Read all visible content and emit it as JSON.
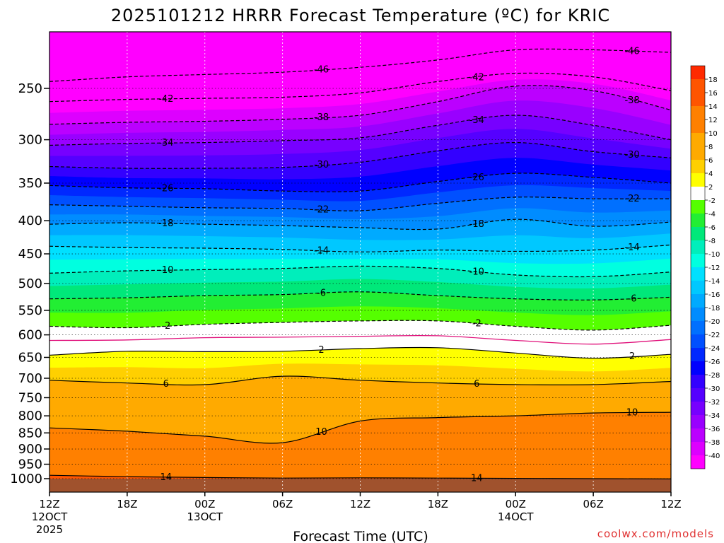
{
  "chart_data": {
    "type": "heatmap",
    "title": "2025101212 HRRR Forecast Temperature (ºC) for KRIC",
    "xlabel": "Forecast Time (UTC)",
    "credit": "coolwx.com/models",
    "y_axis": {
      "scale": "log-pressure",
      "ticks": [
        250,
        300,
        350,
        400,
        450,
        500,
        550,
        600,
        650,
        700,
        750,
        800,
        850,
        900,
        950,
        1000
      ]
    },
    "x_axis": {
      "ticks": [
        {
          "top": "12Z",
          "mid": "12OCT",
          "bottom": "2025"
        },
        {
          "top": "18Z",
          "mid": "",
          "bottom": ""
        },
        {
          "top": "00Z",
          "mid": "13OCT",
          "bottom": ""
        },
        {
          "top": "06Z",
          "mid": "",
          "bottom": ""
        },
        {
          "top": "12Z",
          "mid": "",
          "bottom": ""
        },
        {
          "top": "18Z",
          "mid": "",
          "bottom": ""
        },
        {
          "top": "00Z",
          "mid": "14OCT",
          "bottom": ""
        },
        {
          "top": "06Z",
          "mid": "",
          "bottom": ""
        },
        {
          "top": "12Z",
          "mid": "",
          "bottom": ""
        }
      ]
    },
    "colorbar": {
      "labels": [
        "18",
        "16",
        "14",
        "12",
        "10",
        "8",
        "6",
        "4",
        "2",
        "-2",
        "-4",
        "-6",
        "-8",
        "-10",
        "-12",
        "-14",
        "-16",
        "-18",
        "-20",
        "-22",
        "-24",
        "-26",
        "-28",
        "-30",
        "-32",
        "-34",
        "-36",
        "-38",
        "-40"
      ]
    },
    "isotherms": [
      {
        "value": 14,
        "label": "14",
        "p": [
          988,
          993,
          996,
          998,
          997,
          998,
          999,
          1000,
          1001
        ]
      },
      {
        "value": 10,
        "label": "10",
        "p": [
          835,
          845,
          860,
          880,
          815,
          805,
          800,
          792,
          790
        ]
      },
      {
        "value": 6,
        "label": "6",
        "p": [
          705,
          712,
          716,
          695,
          705,
          712,
          716,
          716,
          708
        ]
      },
      {
        "value": 2,
        "label": "2",
        "p": [
          645,
          636,
          637,
          636,
          630,
          628,
          640,
          652,
          643
        ]
      },
      {
        "value": -2,
        "label": "-2",
        "p": [
          582,
          585,
          578,
          574,
          571,
          571,
          582,
          590,
          580
        ]
      },
      {
        "value": -6,
        "label": "-6",
        "p": [
          528,
          526,
          522,
          520,
          515,
          522,
          528,
          530,
          525
        ]
      },
      {
        "value": -10,
        "label": "-10",
        "p": [
          482,
          478,
          476,
          474,
          470,
          474,
          485,
          488,
          480
        ]
      },
      {
        "value": -14,
        "label": "-14",
        "p": [
          438,
          440,
          441,
          443,
          447,
          444,
          446,
          444,
          436
        ]
      },
      {
        "value": -18,
        "label": "-18",
        "p": [
          405,
          403,
          405,
          407,
          410,
          412,
          398,
          408,
          402
        ]
      },
      {
        "value": -22,
        "label": "-22",
        "p": [
          378,
          380,
          382,
          383,
          386,
          376,
          368,
          370,
          370
        ]
      },
      {
        "value": -26,
        "label": "-26",
        "p": [
          353,
          356,
          357,
          360,
          360,
          348,
          338,
          343,
          350
        ]
      },
      {
        "value": -30,
        "label": "-30",
        "p": [
          330,
          332,
          332,
          331,
          325,
          312,
          303,
          313,
          320
        ]
      },
      {
        "value": -34,
        "label": "-34",
        "p": [
          306,
          304,
          303,
          301,
          298,
          285,
          275,
          285,
          300
        ]
      },
      {
        "value": -38,
        "label": "-38",
        "p": [
          284,
          282,
          281,
          279,
          275,
          262,
          248,
          252,
          270
        ]
      },
      {
        "value": -42,
        "label": "-42",
        "p": [
          262,
          260,
          259,
          258,
          254,
          244,
          237,
          240,
          252
        ]
      },
      {
        "value": -46,
        "label": "-46",
        "p": [
          244,
          240,
          238,
          236,
          232,
          226,
          218,
          218,
          220
        ]
      }
    ],
    "freezing_line": {
      "value": 0,
      "p": [
        612,
        611,
        606,
        605,
        603,
        602,
        612,
        620,
        610
      ]
    },
    "ground": "1000"
  }
}
